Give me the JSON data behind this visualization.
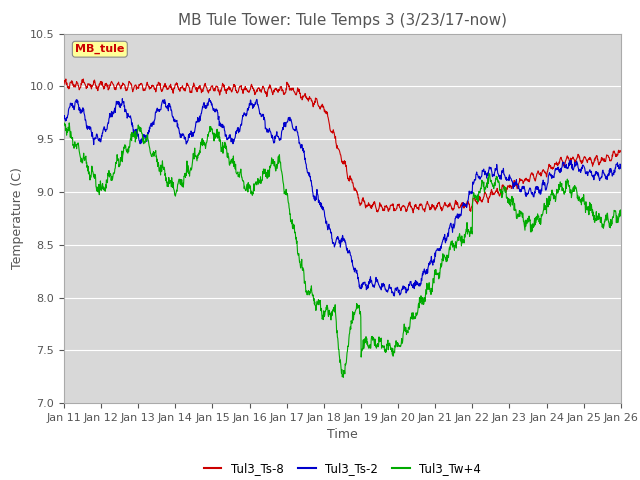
{
  "title": "MB Tule Tower: Tule Temps 3 (3/23/17-now)",
  "xlabel": "Time",
  "ylabel": "Temperature (C)",
  "ylim": [
    7.0,
    10.5
  ],
  "xlim": [
    0,
    15
  ],
  "x_tick_labels": [
    "Jan 11",
    "Jan 12",
    "Jan 13",
    "Jan 14",
    "Jan 15",
    "Jan 16",
    "Jan 17",
    "Jan 18",
    "Jan 19",
    "Jan 20",
    "Jan 21",
    "Jan 22",
    "Jan 23",
    "Jan 24",
    "Jan 25",
    "Jan 26"
  ],
  "legend_labels": [
    "Tul3_Ts-8",
    "Tul3_Ts-2",
    "Tul3_Tw+4"
  ],
  "line_colors": [
    "#cc0000",
    "#0000cc",
    "#00aa00"
  ],
  "annotation_text": "MB_tule",
  "annotation_color": "#cc0000",
  "annotation_bg": "#ffff99",
  "plot_bg": "#d8d8d8",
  "yticks": [
    7.0,
    7.5,
    8.0,
    8.5,
    9.0,
    9.5,
    10.0,
    10.5
  ],
  "title_fontsize": 11,
  "axis_fontsize": 9,
  "tick_fontsize": 8
}
